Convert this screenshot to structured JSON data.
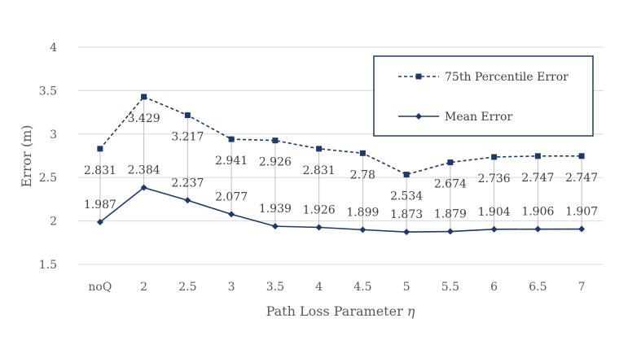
{
  "chart_data": {
    "type": "line",
    "categories": [
      "noQ",
      "2",
      "2.5",
      "3",
      "3.5",
      "4",
      "4.5",
      "5",
      "5.5",
      "6",
      "6.5",
      "7"
    ],
    "series": [
      {
        "name": "75th Percentile Error",
        "values": [
          2.831,
          3.429,
          3.217,
          2.941,
          2.926,
          2.831,
          2.78,
          2.534,
          2.674,
          2.736,
          2.747,
          2.747
        ],
        "labels": [
          "2.831",
          "3.429",
          "3.217",
          "2.941",
          "2.926",
          "2.831",
          "2.78",
          "2.534",
          "2.674",
          "2.736",
          "2.747",
          "2.747"
        ],
        "color": "#1F3864",
        "line_style": "dashed",
        "marker": "square"
      },
      {
        "name": "Mean Error",
        "values": [
          1.987,
          2.384,
          2.237,
          2.077,
          1.939,
          1.926,
          1.899,
          1.873,
          1.879,
          1.904,
          1.906,
          1.907
        ],
        "labels": [
          "1.987",
          "2.384",
          "2.237",
          "2.077",
          "1.939",
          "1.926",
          "1.899",
          "1.873",
          "1.879",
          "1.904",
          "1.906",
          "1.907"
        ],
        "color": "#1F3864",
        "line_style": "solid",
        "marker": "diamond"
      }
    ],
    "title": "",
    "xlabel": "Path Loss Parameter",
    "xlabel_symbol": "η",
    "ylabel": "Error (m)",
    "ylim": [
      1.5,
      4
    ],
    "yticks": [
      "1.5",
      "2",
      "2.5",
      "3",
      "3.5",
      "4"
    ],
    "grid": "horizontal",
    "drop_lines": true,
    "legend": "top-right"
  }
}
